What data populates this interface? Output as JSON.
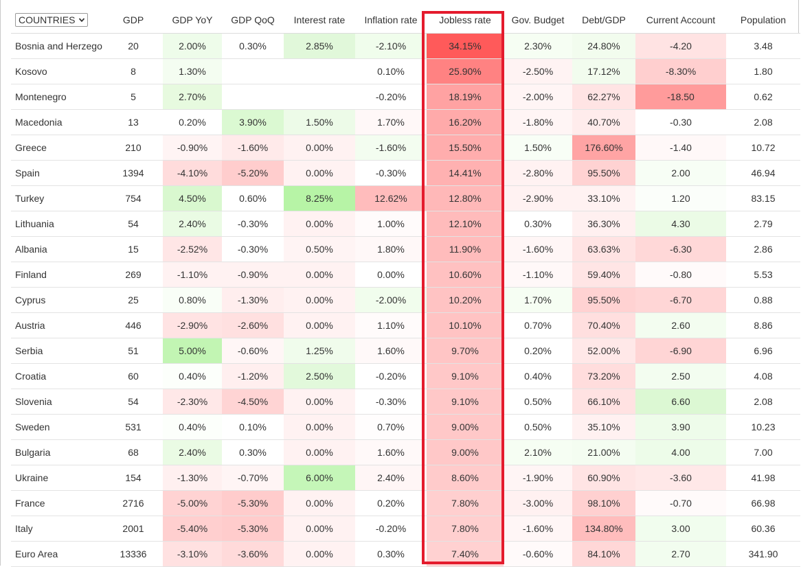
{
  "selector": {
    "label": "COUNTRIES"
  },
  "headers": [
    "GDP",
    "GDP YoY",
    "GDP QoQ",
    "Interest rate",
    "Inflation rate",
    "Jobless rate",
    "Gov. Budget",
    "Debt/GDP",
    "Current Account",
    "Population"
  ],
  "highlight_column": "Jobless rate",
  "highlight_color": "#e41b2d",
  "rows": [
    {
      "name": "Bosnia and Herzego",
      "cells": [
        {
          "v": "20",
          "c": "#ffffff"
        },
        {
          "v": "2.00%",
          "c": "#eefcea"
        },
        {
          "v": "0.30%",
          "c": "#ffffff"
        },
        {
          "v": "2.85%",
          "c": "#e1f8da"
        },
        {
          "v": "-2.10%",
          "c": "#f0fdec"
        },
        {
          "v": "34.15%",
          "c": "#ff5a5a"
        },
        {
          "v": "2.30%",
          "c": "#f6fef3"
        },
        {
          "v": "24.80%",
          "c": "#f2fcee"
        },
        {
          "v": "-4.20",
          "c": "#ffe3e3"
        },
        {
          "v": "3.48",
          "c": "#ffffff"
        }
      ]
    },
    {
      "name": "Kosovo",
      "cells": [
        {
          "v": "8",
          "c": "#ffffff"
        },
        {
          "v": "1.30%",
          "c": "#f4fdf1"
        },
        {
          "v": "",
          "c": "#ffffff"
        },
        {
          "v": "",
          "c": "#ffffff"
        },
        {
          "v": "0.10%",
          "c": "#ffffff"
        },
        {
          "v": "25.90%",
          "c": "#ff8282"
        },
        {
          "v": "-2.50%",
          "c": "#fff3f3"
        },
        {
          "v": "17.12%",
          "c": "#f2fcee"
        },
        {
          "v": "-8.30%",
          "c": "#ffcfcf"
        },
        {
          "v": "1.80",
          "c": "#ffffff"
        }
      ]
    },
    {
      "name": "Montenegro",
      "cells": [
        {
          "v": "5",
          "c": "#ffffff"
        },
        {
          "v": "2.70%",
          "c": "#e7fadf"
        },
        {
          "v": "",
          "c": "#ffffff"
        },
        {
          "v": "",
          "c": "#ffffff"
        },
        {
          "v": "-0.20%",
          "c": "#ffffff"
        },
        {
          "v": "18.19%",
          "c": "#ffa2a2"
        },
        {
          "v": "-2.00%",
          "c": "#fff5f5"
        },
        {
          "v": "62.27%",
          "c": "#ffe4e4"
        },
        {
          "v": "-18.50",
          "c": "#ff9b9b"
        },
        {
          "v": "0.62",
          "c": "#ffffff"
        }
      ]
    },
    {
      "name": "Macedonia",
      "cells": [
        {
          "v": "13",
          "c": "#ffffff"
        },
        {
          "v": "0.20%",
          "c": "#ffffff"
        },
        {
          "v": "3.90%",
          "c": "#dbf9d2"
        },
        {
          "v": "1.50%",
          "c": "#edfbe8"
        },
        {
          "v": "1.70%",
          "c": "#fff8f8"
        },
        {
          "v": "16.20%",
          "c": "#ffaaaa"
        },
        {
          "v": "-1.80%",
          "c": "#fff5f5"
        },
        {
          "v": "40.70%",
          "c": "#ffecec"
        },
        {
          "v": "-0.30",
          "c": "#ffffff"
        },
        {
          "v": "2.08",
          "c": "#ffffff"
        }
      ]
    },
    {
      "name": "Greece",
      "cells": [
        {
          "v": "210",
          "c": "#ffffff"
        },
        {
          "v": "-0.90%",
          "c": "#fff4f4"
        },
        {
          "v": "-1.60%",
          "c": "#ffeaea"
        },
        {
          "v": "0.00%",
          "c": "#fff2f2"
        },
        {
          "v": "-1.60%",
          "c": "#f3fdf0"
        },
        {
          "v": "15.50%",
          "c": "#ffadad"
        },
        {
          "v": "1.50%",
          "c": "#f8fef6"
        },
        {
          "v": "176.60%",
          "c": "#ffa4a4"
        },
        {
          "v": "-1.40",
          "c": "#fff8f8"
        },
        {
          "v": "10.72",
          "c": "#ffffff"
        }
      ]
    },
    {
      "name": "Spain",
      "cells": [
        {
          "v": "1394",
          "c": "#ffffff"
        },
        {
          "v": "-4.10%",
          "c": "#ffdcdc"
        },
        {
          "v": "-5.20%",
          "c": "#ffcdcd"
        },
        {
          "v": "0.00%",
          "c": "#fff2f2"
        },
        {
          "v": "-0.30%",
          "c": "#ffffff"
        },
        {
          "v": "14.41%",
          "c": "#ffb1b1"
        },
        {
          "v": "-2.80%",
          "c": "#fff2f2"
        },
        {
          "v": "95.50%",
          "c": "#ffd2d2"
        },
        {
          "v": "2.00",
          "c": "#f7fef5"
        },
        {
          "v": "46.94",
          "c": "#ffffff"
        }
      ]
    },
    {
      "name": "Turkey",
      "cells": [
        {
          "v": "754",
          "c": "#ffffff"
        },
        {
          "v": "4.50%",
          "c": "#d9f8cf"
        },
        {
          "v": "0.60%",
          "c": "#ffffff"
        },
        {
          "v": "8.25%",
          "c": "#b7f4a6"
        },
        {
          "v": "12.62%",
          "c": "#ffbcbc"
        },
        {
          "v": "12.80%",
          "c": "#ffb8b8"
        },
        {
          "v": "-2.90%",
          "c": "#fff2f2"
        },
        {
          "v": "33.10%",
          "c": "#fff2f2"
        },
        {
          "v": "1.20",
          "c": "#fbfefa"
        },
        {
          "v": "83.15",
          "c": "#ffffff"
        }
      ]
    },
    {
      "name": "Lithuania",
      "cells": [
        {
          "v": "54",
          "c": "#ffffff"
        },
        {
          "v": "2.40%",
          "c": "#eafbe4"
        },
        {
          "v": "-0.30%",
          "c": "#ffffff"
        },
        {
          "v": "0.00%",
          "c": "#fff2f2"
        },
        {
          "v": "1.00%",
          "c": "#fffbfb"
        },
        {
          "v": "12.10%",
          "c": "#ffbbbb"
        },
        {
          "v": "0.30%",
          "c": "#ffffff"
        },
        {
          "v": "36.30%",
          "c": "#fff0f0"
        },
        {
          "v": "4.30",
          "c": "#ebfbe6"
        },
        {
          "v": "2.79",
          "c": "#ffffff"
        }
      ]
    },
    {
      "name": "Albania",
      "cells": [
        {
          "v": "15",
          "c": "#ffffff"
        },
        {
          "v": "-2.52%",
          "c": "#ffe6e6"
        },
        {
          "v": "-0.30%",
          "c": "#ffffff"
        },
        {
          "v": "0.50%",
          "c": "#fff4f4"
        },
        {
          "v": "1.80%",
          "c": "#fff8f8"
        },
        {
          "v": "11.90%",
          "c": "#ffbcbc"
        },
        {
          "v": "-1.60%",
          "c": "#fff6f6"
        },
        {
          "v": "63.63%",
          "c": "#ffe3e3"
        },
        {
          "v": "-6.30",
          "c": "#ffd8d8"
        },
        {
          "v": "2.86",
          "c": "#ffffff"
        }
      ]
    },
    {
      "name": "Finland",
      "cells": [
        {
          "v": "269",
          "c": "#ffffff"
        },
        {
          "v": "-1.10%",
          "c": "#fff2f2"
        },
        {
          "v": "-0.90%",
          "c": "#fff2f2"
        },
        {
          "v": "0.00%",
          "c": "#fff2f2"
        },
        {
          "v": "0.00%",
          "c": "#ffffff"
        },
        {
          "v": "10.60%",
          "c": "#ffc1c1"
        },
        {
          "v": "-1.10%",
          "c": "#fff8f8"
        },
        {
          "v": "59.40%",
          "c": "#ffe5e5"
        },
        {
          "v": "-0.80",
          "c": "#fffafa"
        },
        {
          "v": "5.53",
          "c": "#ffffff"
        }
      ]
    },
    {
      "name": "Cyprus",
      "cells": [
        {
          "v": "25",
          "c": "#ffffff"
        },
        {
          "v": "0.80%",
          "c": "#f9fef7"
        },
        {
          "v": "-1.30%",
          "c": "#ffeeee"
        },
        {
          "v": "0.00%",
          "c": "#fff2f2"
        },
        {
          "v": "-2.00%",
          "c": "#f1fded"
        },
        {
          "v": "10.20%",
          "c": "#ffc3c3"
        },
        {
          "v": "1.70%",
          "c": "#f6fef3"
        },
        {
          "v": "95.50%",
          "c": "#ffd2d2"
        },
        {
          "v": "-6.70",
          "c": "#ffd6d6"
        },
        {
          "v": "0.88",
          "c": "#ffffff"
        }
      ]
    },
    {
      "name": "Austria",
      "cells": [
        {
          "v": "446",
          "c": "#ffffff"
        },
        {
          "v": "-2.90%",
          "c": "#ffe3e3"
        },
        {
          "v": "-2.60%",
          "c": "#ffe0e0"
        },
        {
          "v": "0.00%",
          "c": "#fff2f2"
        },
        {
          "v": "1.10%",
          "c": "#fffbfb"
        },
        {
          "v": "10.10%",
          "c": "#ffc3c3"
        },
        {
          "v": "0.70%",
          "c": "#ffffff"
        },
        {
          "v": "70.40%",
          "c": "#ffdfdf"
        },
        {
          "v": "2.60",
          "c": "#f3fdf0"
        },
        {
          "v": "8.86",
          "c": "#ffffff"
        }
      ]
    },
    {
      "name": "Serbia",
      "cells": [
        {
          "v": "51",
          "c": "#ffffff"
        },
        {
          "v": "5.00%",
          "c": "#c2f5b3"
        },
        {
          "v": "-0.60%",
          "c": "#fff6f6"
        },
        {
          "v": "1.25%",
          "c": "#f0fcec"
        },
        {
          "v": "1.60%",
          "c": "#fff9f9"
        },
        {
          "v": "9.70%",
          "c": "#ffc5c5"
        },
        {
          "v": "0.20%",
          "c": "#ffffff"
        },
        {
          "v": "52.00%",
          "c": "#ffe8e8"
        },
        {
          "v": "-6.90",
          "c": "#ffd5d5"
        },
        {
          "v": "6.96",
          "c": "#ffffff"
        }
      ]
    },
    {
      "name": "Croatia",
      "cells": [
        {
          "v": "60",
          "c": "#ffffff"
        },
        {
          "v": "0.40%",
          "c": "#fcfffb"
        },
        {
          "v": "-1.20%",
          "c": "#ffefef"
        },
        {
          "v": "2.50%",
          "c": "#e2f9db"
        },
        {
          "v": "-0.20%",
          "c": "#ffffff"
        },
        {
          "v": "9.10%",
          "c": "#ffc8c8"
        },
        {
          "v": "0.40%",
          "c": "#ffffff"
        },
        {
          "v": "73.20%",
          "c": "#ffdddd"
        },
        {
          "v": "2.50",
          "c": "#f3fdf0"
        },
        {
          "v": "4.08",
          "c": "#ffffff"
        }
      ]
    },
    {
      "name": "Slovenia",
      "cells": [
        {
          "v": "54",
          "c": "#ffffff"
        },
        {
          "v": "-2.30%",
          "c": "#ffe8e8"
        },
        {
          "v": "-4.50%",
          "c": "#ffd4d4"
        },
        {
          "v": "0.00%",
          "c": "#fff2f2"
        },
        {
          "v": "-0.30%",
          "c": "#ffffff"
        },
        {
          "v": "9.10%",
          "c": "#ffc8c8"
        },
        {
          "v": "0.50%",
          "c": "#ffffff"
        },
        {
          "v": "66.10%",
          "c": "#ffe2e2"
        },
        {
          "v": "6.60",
          "c": "#dcf8d3"
        },
        {
          "v": "2.08",
          "c": "#ffffff"
        }
      ]
    },
    {
      "name": "Sweden",
      "cells": [
        {
          "v": "531",
          "c": "#ffffff"
        },
        {
          "v": "0.40%",
          "c": "#fcfffb"
        },
        {
          "v": "0.10%",
          "c": "#ffffff"
        },
        {
          "v": "0.00%",
          "c": "#fff2f2"
        },
        {
          "v": "0.70%",
          "c": "#fffdfd"
        },
        {
          "v": "9.00%",
          "c": "#ffc8c8"
        },
        {
          "v": "0.50%",
          "c": "#ffffff"
        },
        {
          "v": "35.10%",
          "c": "#fff1f1"
        },
        {
          "v": "3.90",
          "c": "#eefcea"
        },
        {
          "v": "10.23",
          "c": "#ffffff"
        }
      ]
    },
    {
      "name": "Bulgaria",
      "cells": [
        {
          "v": "68",
          "c": "#ffffff"
        },
        {
          "v": "2.40%",
          "c": "#eafbe4"
        },
        {
          "v": "0.30%",
          "c": "#ffffff"
        },
        {
          "v": "0.00%",
          "c": "#fff2f2"
        },
        {
          "v": "1.60%",
          "c": "#fff9f9"
        },
        {
          "v": "9.00%",
          "c": "#ffc8c8"
        },
        {
          "v": "2.10%",
          "c": "#f6fef3"
        },
        {
          "v": "21.00%",
          "c": "#f4fdf1"
        },
        {
          "v": "4.00",
          "c": "#edfce9"
        },
        {
          "v": "7.00",
          "c": "#ffffff"
        }
      ]
    },
    {
      "name": "Ukraine",
      "cells": [
        {
          "v": "154",
          "c": "#ffffff"
        },
        {
          "v": "-1.30%",
          "c": "#fff0f0"
        },
        {
          "v": "-0.70%",
          "c": "#fff5f5"
        },
        {
          "v": "6.00%",
          "c": "#c5f6b8"
        },
        {
          "v": "2.40%",
          "c": "#fff6f6"
        },
        {
          "v": "8.60%",
          "c": "#ffcbcb"
        },
        {
          "v": "-1.90%",
          "c": "#fff5f5"
        },
        {
          "v": "60.90%",
          "c": "#ffe4e4"
        },
        {
          "v": "-3.60",
          "c": "#ffe8e8"
        },
        {
          "v": "41.98",
          "c": "#ffffff"
        }
      ]
    },
    {
      "name": "France",
      "cells": [
        {
          "v": "2716",
          "c": "#ffffff"
        },
        {
          "v": "-5.00%",
          "c": "#ffd3d3"
        },
        {
          "v": "-5.30%",
          "c": "#ffcccc"
        },
        {
          "v": "0.00%",
          "c": "#fff2f2"
        },
        {
          "v": "0.20%",
          "c": "#ffffff"
        },
        {
          "v": "7.80%",
          "c": "#ffcfcf"
        },
        {
          "v": "-3.00%",
          "c": "#fff1f1"
        },
        {
          "v": "98.10%",
          "c": "#ffd0d0"
        },
        {
          "v": "-0.70",
          "c": "#fffafa"
        },
        {
          "v": "66.98",
          "c": "#ffffff"
        }
      ]
    },
    {
      "name": "Italy",
      "cells": [
        {
          "v": "2001",
          "c": "#ffffff"
        },
        {
          "v": "-5.40%",
          "c": "#ffcfcf"
        },
        {
          "v": "-5.30%",
          "c": "#ffcccc"
        },
        {
          "v": "0.00%",
          "c": "#fff2f2"
        },
        {
          "v": "-0.20%",
          "c": "#ffffff"
        },
        {
          "v": "7.80%",
          "c": "#ffcfcf"
        },
        {
          "v": "-1.60%",
          "c": "#fff6f6"
        },
        {
          "v": "134.80%",
          "c": "#ffbdbd"
        },
        {
          "v": "3.00",
          "c": "#f1fdee"
        },
        {
          "v": "60.36",
          "c": "#ffffff"
        }
      ]
    },
    {
      "name": "Euro Area",
      "cells": [
        {
          "v": "13336",
          "c": "#ffffff"
        },
        {
          "v": "-3.10%",
          "c": "#ffe1e1"
        },
        {
          "v": "-3.60%",
          "c": "#ffdada"
        },
        {
          "v": "0.00%",
          "c": "#fff2f2"
        },
        {
          "v": "0.30%",
          "c": "#ffffff"
        },
        {
          "v": "7.40%",
          "c": "#ffd1d1"
        },
        {
          "v": "-0.60%",
          "c": "#fffafa"
        },
        {
          "v": "84.10%",
          "c": "#ffd7d7"
        },
        {
          "v": "2.70",
          "c": "#f2fdef"
        },
        {
          "v": "341.90",
          "c": "#ffffff"
        }
      ]
    }
  ]
}
